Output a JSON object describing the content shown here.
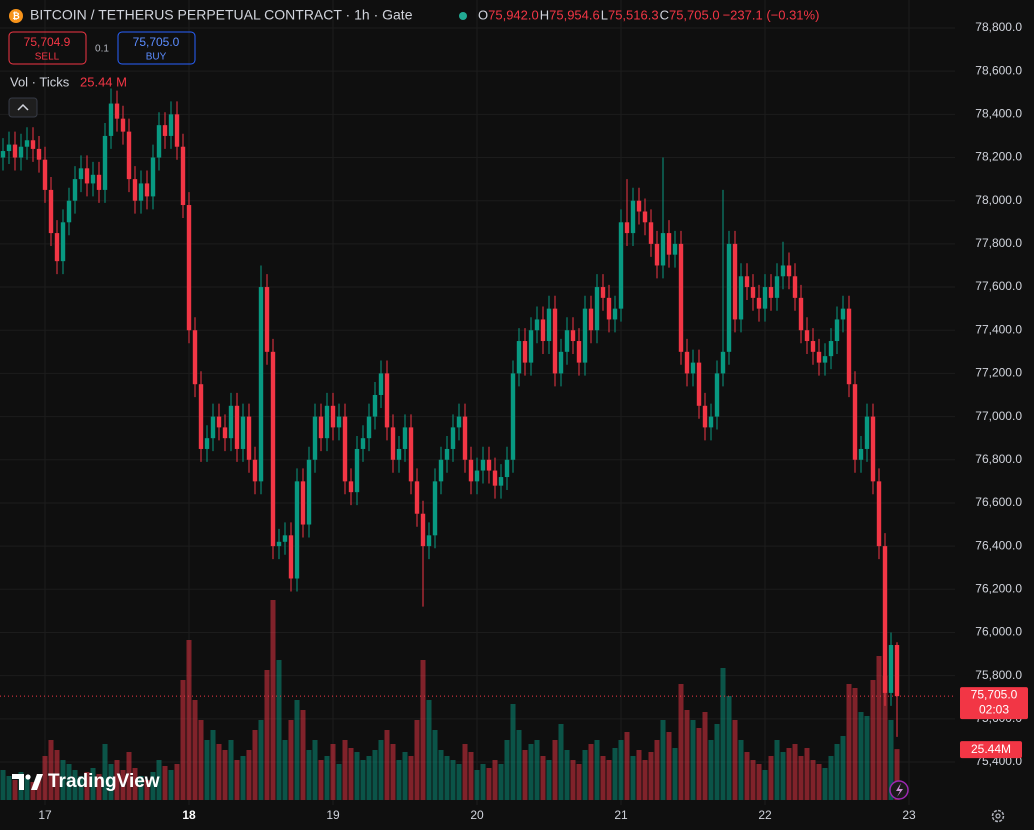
{
  "chart_data": {
    "type": "candlestick",
    "title": "BITCOIN / TETHERUS PERPETUAL CONTRACT · 1h · Gate",
    "ohlc_legend": [
      {
        "key": "O",
        "text": "75,942.0"
      },
      {
        "key": "H",
        "text": "75,954.6"
      },
      {
        "key": "L",
        "text": "75,516.3"
      },
      {
        "key": "C",
        "text": "75,705.0"
      }
    ],
    "change": "−237.1 (−0.31%)",
    "sell": {
      "price": "75,704.9",
      "label": "SELL"
    },
    "spread": "0.1",
    "buy": {
      "price": "75,705.0",
      "label": "BUY"
    },
    "volume_title": "Vol · Ticks",
    "volume_value": "25.44 M",
    "brand": "TradingView",
    "up_color": "#089981",
    "down_color": "#f23645",
    "grid": true,
    "xlim": [
      -0.5,
      158.5
    ],
    "xticks": [
      {
        "value": 7,
        "label": "17"
      },
      {
        "value": 31,
        "label": "18"
      },
      {
        "value": 55,
        "label": "19"
      },
      {
        "value": 79,
        "label": "20"
      },
      {
        "value": 103,
        "label": "21"
      },
      {
        "value": 127,
        "label": "22"
      },
      {
        "value": 151,
        "label": "23"
      }
    ],
    "ylim": [
      75400,
      78800
    ],
    "yticks": [
      {
        "value": 75400,
        "label": "75,400.0"
      },
      {
        "value": 75600,
        "label": "75,600.0"
      },
      {
        "value": 75800,
        "label": "75,800.0"
      },
      {
        "value": 76000,
        "label": "76,000.0"
      },
      {
        "value": 76200,
        "label": "76,200.0"
      },
      {
        "value": 76400,
        "label": "76,400.0"
      },
      {
        "value": 76600,
        "label": "76,600.0"
      },
      {
        "value": 76800,
        "label": "76,800.0"
      },
      {
        "value": 77000,
        "label": "77,000.0"
      },
      {
        "value": 77200,
        "label": "77,200.0"
      },
      {
        "value": 77400,
        "label": "77,400.0"
      },
      {
        "value": 77600,
        "label": "77,600.0"
      },
      {
        "value": 77800,
        "label": "77,800.0"
      },
      {
        "value": 78000,
        "label": "78,000.0"
      },
      {
        "value": 78200,
        "label": "78,200.0"
      },
      {
        "value": 78400,
        "label": "78,400.0"
      },
      {
        "value": 78600,
        "label": "78,600.0"
      },
      {
        "value": 78800,
        "label": "78,800.0"
      }
    ],
    "vlim": [
      0,
      100
    ],
    "last_price": {
      "value": 75705.0,
      "label": "75,705.0",
      "countdown": "02:03"
    },
    "last_volume": {
      "value": 25.44,
      "label": "25.44M"
    },
    "open": [
      78200,
      78230,
      78260,
      78200,
      78250,
      78280,
      78240,
      78190,
      78050,
      77850,
      77720,
      77900,
      78000,
      78100,
      78150,
      78080,
      78120,
      78050,
      78300,
      78450,
      78380,
      78320,
      78100,
      78000,
      78080,
      78020,
      78200,
      78350,
      78300,
      78400,
      78250,
      77980,
      77400,
      77150,
      76850,
      76900,
      77000,
      76950,
      76900,
      77050,
      76850,
      77000,
      76800,
      76700,
      77600,
      77300,
      76400,
      76420,
      76450,
      76250,
      76700,
      76500,
      76800,
      77000,
      76900,
      77050,
      76950,
      77000,
      76700,
      76650,
      76850,
      76900,
      77000,
      77100,
      77200,
      76950,
      76800,
      76850,
      76950,
      76700,
      76550,
      76400,
      76450,
      76700,
      76800,
      76850,
      76950,
      77000,
      76800,
      76700,
      76750,
      76800,
      76750,
      76680,
      76720,
      76800,
      77200,
      77350,
      77250,
      77400,
      77450,
      77350,
      77500,
      77200,
      77300,
      77400,
      77350,
      77250,
      77500,
      77400,
      77600,
      77550,
      77450,
      77500,
      77900,
      77850,
      78000,
      77950,
      77900,
      77800,
      77700,
      77850,
      77750,
      77800,
      77300,
      77200,
      77250,
      77050,
      76950,
      77000,
      77200,
      77300,
      77800,
      77450,
      77650,
      77600,
      77550,
      77500,
      77600,
      77550,
      77650,
      77700,
      77650,
      77550,
      77400,
      77350,
      77300,
      77250,
      77280,
      77350,
      77450,
      77500,
      77150,
      76800,
      76850,
      77000,
      76700,
      76400,
      75720,
      75942
    ],
    "high": [
      78290,
      78320,
      78320,
      78310,
      78340,
      78340,
      78300,
      78250,
      78110,
      77910,
      77960,
      78060,
      78160,
      78210,
      78210,
      78180,
      78180,
      78360,
      78520,
      78510,
      78440,
      78380,
      78160,
      78140,
      78140,
      78260,
      78410,
      78410,
      78460,
      78460,
      78310,
      78040,
      77460,
      77210,
      76960,
      77060,
      77060,
      77010,
      77110,
      77110,
      77060,
      77060,
      76860,
      77700,
      77660,
      77360,
      76480,
      76510,
      76510,
      76760,
      76760,
      76860,
      77060,
      77060,
      77110,
      77110,
      77060,
      77060,
      76760,
      76910,
      76960,
      77060,
      77160,
      77260,
      77260,
      77010,
      76910,
      77010,
      77010,
      76760,
      76610,
      76510,
      76760,
      76860,
      76910,
      77010,
      77060,
      77060,
      76860,
      76810,
      76860,
      76860,
      76810,
      76780,
      76860,
      77260,
      77410,
      77410,
      77460,
      77510,
      77510,
      77560,
      77560,
      77360,
      77460,
      77460,
      77410,
      77560,
      77560,
      77660,
      77660,
      77610,
      77560,
      77960,
      78100,
      78060,
      78060,
      78010,
      77960,
      77860,
      78200,
      77910,
      77860,
      77860,
      77360,
      77310,
      77310,
      77110,
      77060,
      77260,
      78050,
      77860,
      77860,
      77710,
      77710,
      77660,
      77610,
      77660,
      77660,
      77710,
      77810,
      77760,
      77710,
      77610,
      77460,
      77410,
      77360,
      77340,
      77410,
      77510,
      77560,
      77560,
      77210,
      76910,
      77060,
      77060,
      76760,
      76460,
      76000,
      75954.6
    ],
    "low": [
      78140,
      78170,
      78140,
      78140,
      78190,
      78180,
      78130,
      77990,
      77790,
      77660,
      77660,
      77840,
      77940,
      78040,
      78020,
      78020,
      77990,
      77990,
      78240,
      78320,
      78260,
      78040,
      77940,
      77940,
      77960,
      77960,
      78140,
      78240,
      78240,
      78190,
      77920,
      77340,
      77090,
      76790,
      76790,
      76840,
      76890,
      76840,
      76840,
      76790,
      76790,
      76740,
      76640,
      76640,
      77240,
      76340,
      76340,
      76360,
      76190,
      76190,
      76440,
      76440,
      76740,
      76840,
      76840,
      76890,
      76890,
      76640,
      76590,
      76590,
      76790,
      76840,
      76940,
      77040,
      76890,
      76740,
      76740,
      76790,
      76640,
      76490,
      76120,
      76340,
      76390,
      76640,
      76740,
      76790,
      76890,
      76740,
      76640,
      76640,
      76690,
      76690,
      76620,
      76620,
      76660,
      76740,
      77140,
      77190,
      77190,
      77340,
      77290,
      77290,
      77140,
      77140,
      77240,
      77290,
      77190,
      77190,
      77340,
      77340,
      77490,
      77390,
      77390,
      77440,
      77790,
      77790,
      77890,
      77840,
      77740,
      77640,
      77640,
      77690,
      77690,
      77240,
      77140,
      77140,
      76990,
      76890,
      76890,
      76940,
      77140,
      77240,
      77390,
      77390,
      77540,
      77490,
      77440,
      77440,
      77490,
      77490,
      77590,
      77590,
      77490,
      77340,
      77290,
      77240,
      77190,
      77190,
      77220,
      77290,
      77390,
      77090,
      76740,
      76740,
      76790,
      76640,
      76340,
      75660,
      75660,
      75516.3
    ],
    "close": [
      78230,
      78260,
      78200,
      78250,
      78280,
      78240,
      78190,
      78050,
      77850,
      77720,
      77900,
      78000,
      78100,
      78150,
      78080,
      78120,
      78050,
      78300,
      78450,
      78380,
      78320,
      78100,
      78000,
      78080,
      78020,
      78200,
      78350,
      78300,
      78400,
      78250,
      77980,
      77400,
      77150,
      76850,
      76900,
      77000,
      76950,
      76900,
      77050,
      76850,
      77000,
      76800,
      76700,
      77600,
      77300,
      76400,
      76420,
      76450,
      76250,
      76700,
      76500,
      76800,
      77000,
      76900,
      77050,
      76950,
      77000,
      76700,
      76650,
      76850,
      76900,
      77000,
      77100,
      77200,
      76950,
      76800,
      76850,
      76950,
      76700,
      76550,
      76400,
      76450,
      76700,
      76800,
      76850,
      76950,
      77000,
      76800,
      76700,
      76750,
      76800,
      76750,
      76680,
      76720,
      76800,
      77200,
      77350,
      77250,
      77400,
      77450,
      77350,
      77500,
      77200,
      77300,
      77400,
      77350,
      77250,
      77500,
      77400,
      77600,
      77550,
      77450,
      77500,
      77900,
      77850,
      78000,
      77950,
      77900,
      77800,
      77700,
      77850,
      77750,
      77800,
      77300,
      77200,
      77250,
      77050,
      76950,
      77000,
      77200,
      77300,
      77800,
      77450,
      77650,
      77600,
      77550,
      77500,
      77600,
      77550,
      77650,
      77700,
      77650,
      77550,
      77400,
      77350,
      77300,
      77250,
      77280,
      77350,
      77450,
      77500,
      77150,
      76800,
      76850,
      77000,
      76700,
      76400,
      75720,
      75942,
      75705
    ],
    "volume": [
      15,
      12,
      10,
      14,
      11,
      9,
      13,
      22,
      30,
      25,
      20,
      18,
      15,
      12,
      14,
      16,
      13,
      28,
      18,
      20,
      15,
      24,
      16,
      12,
      10,
      14,
      20,
      17,
      15,
      18,
      60,
      80,
      50,
      40,
      30,
      35,
      28,
      25,
      30,
      20,
      22,
      25,
      35,
      40,
      65,
      100,
      70,
      30,
      40,
      50,
      45,
      25,
      30,
      20,
      22,
      28,
      18,
      30,
      26,
      24,
      20,
      22,
      25,
      30,
      35,
      28,
      20,
      24,
      22,
      40,
      70,
      50,
      35,
      25,
      22,
      20,
      18,
      28,
      24,
      15,
      18,
      16,
      20,
      18,
      30,
      48,
      35,
      25,
      28,
      30,
      22,
      20,
      30,
      38,
      25,
      20,
      18,
      25,
      28,
      30,
      22,
      20,
      26,
      30,
      34,
      22,
      25,
      20,
      24,
      30,
      40,
      34,
      26,
      58,
      45,
      40,
      36,
      44,
      30,
      38,
      66,
      52,
      40,
      30,
      24,
      20,
      18,
      15,
      22,
      30,
      24,
      26,
      28,
      22,
      26,
      20,
      18,
      16,
      22,
      28,
      32,
      58,
      56,
      44,
      42,
      60,
      72,
      62,
      40,
      25.44
    ]
  }
}
